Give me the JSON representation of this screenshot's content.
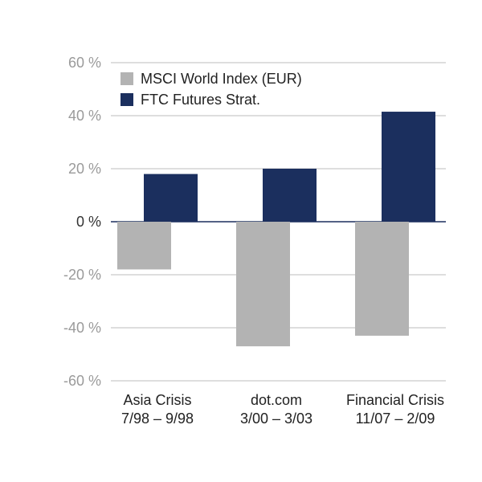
{
  "chart_data": {
    "type": "bar",
    "categories": [
      [
        "Asia Crisis",
        "7/98 – 9/98"
      ],
      [
        "dot.com",
        "3/00 – 3/03"
      ],
      [
        "Financial Crisis",
        "11/07 – 2/09"
      ]
    ],
    "series": [
      {
        "name": "MSCI World Index (EUR)",
        "values": [
          -18,
          -47,
          -43
        ],
        "color": "#b3b3b3"
      },
      {
        "name": "FTC Futures Strat.",
        "values": [
          18,
          20,
          41.5
        ],
        "color": "#1b2f5e"
      }
    ],
    "yticks": [
      "60 %",
      "40 %",
      "20 %",
      "0 %",
      "-20 %",
      "-40 %",
      "-60 %"
    ],
    "ylim": [
      -60,
      60
    ],
    "grid": true,
    "legend_position": "top-left"
  }
}
